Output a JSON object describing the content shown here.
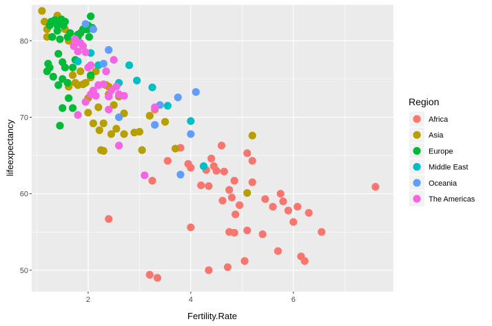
{
  "chart_data": {
    "type": "scatter",
    "xlabel": "Fertility.Rate",
    "ylabel": "lifeexpectancy",
    "xlim": [
      0.9,
      7.95
    ],
    "ylim": [
      47.2,
      84.7
    ],
    "x_ticks": [
      2,
      4,
      6
    ],
    "y_ticks": [
      50,
      60,
      70,
      80
    ],
    "grid": true,
    "legend": {
      "title": "Region",
      "placement": "right"
    },
    "series": [
      {
        "name": "Africa",
        "color": "#F8766D",
        "points": [
          [
            2.4,
            56.7
          ],
          [
            3.25,
            61.7
          ],
          [
            3.3,
            71.0
          ],
          [
            3.2,
            49.4
          ],
          [
            3.35,
            49.0
          ],
          [
            3.55,
            64.3
          ],
          [
            3.8,
            66.0
          ],
          [
            3.95,
            63.9
          ],
          [
            4.0,
            63.4
          ],
          [
            4.0,
            55.6
          ],
          [
            4.2,
            61.1
          ],
          [
            4.3,
            63.1
          ],
          [
            4.35,
            50.0
          ],
          [
            4.35,
            61.0
          ],
          [
            4.4,
            64.6
          ],
          [
            4.45,
            63.6
          ],
          [
            4.5,
            63.0
          ],
          [
            4.6,
            66.3
          ],
          [
            4.62,
            59.1
          ],
          [
            4.65,
            62.9
          ],
          [
            4.72,
            50.4
          ],
          [
            4.75,
            55.0
          ],
          [
            4.75,
            60.5
          ],
          [
            4.8,
            59.5
          ],
          [
            4.85,
            54.9
          ],
          [
            4.85,
            61.7
          ],
          [
            4.87,
            57.3
          ],
          [
            4.95,
            58.5
          ],
          [
            5.05,
            51.2
          ],
          [
            5.1,
            55.2
          ],
          [
            5.1,
            65.3
          ],
          [
            5.2,
            64.3
          ],
          [
            5.2,
            61.5
          ],
          [
            5.4,
            54.7
          ],
          [
            5.45,
            59.3
          ],
          [
            5.6,
            58.3
          ],
          [
            5.7,
            52.5
          ],
          [
            5.75,
            60.0
          ],
          [
            5.8,
            59.0
          ],
          [
            5.9,
            57.8
          ],
          [
            6.0,
            56.3
          ],
          [
            6.08,
            58.3
          ],
          [
            6.15,
            51.8
          ],
          [
            6.22,
            51.2
          ],
          [
            6.3,
            57.5
          ],
          [
            6.55,
            55.0
          ],
          [
            7.6,
            60.9
          ]
        ]
      },
      {
        "name": "Asia",
        "color": "#B79F00",
        "points": [
          [
            1.1,
            83.9
          ],
          [
            1.15,
            82.5
          ],
          [
            1.2,
            81.5
          ],
          [
            1.2,
            80.5
          ],
          [
            1.3,
            80.5
          ],
          [
            1.4,
            83.3
          ],
          [
            1.55,
            81.5
          ],
          [
            1.62,
            80.0
          ],
          [
            1.62,
            74.0
          ],
          [
            1.7,
            75.5
          ],
          [
            1.75,
            74.5
          ],
          [
            1.8,
            74.2
          ],
          [
            1.85,
            76.0
          ],
          [
            1.9,
            74.3
          ],
          [
            1.95,
            74.5
          ],
          [
            2.0,
            72.5
          ],
          [
            2.0,
            70.6
          ],
          [
            2.05,
            75.2
          ],
          [
            2.1,
            69.2
          ],
          [
            2.15,
            76.0
          ],
          [
            2.2,
            71.3
          ],
          [
            2.22,
            68.3
          ],
          [
            2.25,
            65.7
          ],
          [
            2.3,
            69.2
          ],
          [
            2.3,
            65.6
          ],
          [
            2.35,
            74.2
          ],
          [
            2.4,
            73.0
          ],
          [
            2.4,
            74.0
          ],
          [
            2.45,
            67.8
          ],
          [
            2.5,
            71.6
          ],
          [
            2.55,
            68.5
          ],
          [
            2.6,
            72.7
          ],
          [
            2.7,
            67.8
          ],
          [
            2.7,
            70.5
          ],
          [
            2.9,
            68.0
          ],
          [
            3.0,
            68.1
          ],
          [
            3.05,
            65.7
          ],
          [
            3.2,
            70.2
          ],
          [
            3.5,
            69.4
          ],
          [
            3.7,
            65.9
          ],
          [
            5.1,
            60.1
          ],
          [
            5.2,
            67.6
          ]
        ]
      },
      {
        "name": "Europe",
        "color": "#00BA38",
        "points": [
          [
            1.2,
            76.0
          ],
          [
            1.22,
            77.0
          ],
          [
            1.25,
            76.5
          ],
          [
            1.25,
            82.0
          ],
          [
            1.28,
            82.5
          ],
          [
            1.3,
            80.5
          ],
          [
            1.32,
            75.3
          ],
          [
            1.35,
            82.7
          ],
          [
            1.4,
            82.0
          ],
          [
            1.4,
            81.3
          ],
          [
            1.42,
            78.3
          ],
          [
            1.42,
            74.2
          ],
          [
            1.45,
            68.9
          ],
          [
            1.45,
            80.2
          ],
          [
            1.48,
            82.8
          ],
          [
            1.5,
            71.2
          ],
          [
            1.5,
            75.0
          ],
          [
            1.5,
            77.2
          ],
          [
            1.52,
            82.0
          ],
          [
            1.55,
            82.5
          ],
          [
            1.55,
            76.5
          ],
          [
            1.6,
            74.5
          ],
          [
            1.6,
            80.5
          ],
          [
            1.62,
            72.5
          ],
          [
            1.65,
            81.0
          ],
          [
            1.7,
            71.2
          ],
          [
            1.7,
            76.5
          ],
          [
            1.75,
            77.5
          ],
          [
            1.8,
            80.5
          ],
          [
            1.8,
            80.8
          ],
          [
            1.85,
            81.0
          ],
          [
            1.9,
            81.5
          ],
          [
            1.95,
            81.5
          ],
          [
            2.0,
            81.5
          ],
          [
            2.0,
            82.0
          ],
          [
            2.02,
            80.5
          ],
          [
            2.05,
            83.2
          ],
          [
            2.05,
            75.5
          ],
          [
            2.08,
            81.7
          ]
        ]
      },
      {
        "name": "Middle East",
        "color": "#00BFC4",
        "points": [
          [
            1.8,
            77.3
          ],
          [
            2.05,
            78.4
          ],
          [
            2.2,
            76.8
          ],
          [
            2.6,
            74.5
          ],
          [
            2.8,
            76.8
          ],
          [
            2.95,
            74.8
          ],
          [
            3.25,
            73.9
          ],
          [
            3.55,
            71.5
          ],
          [
            4.0,
            69.5
          ],
          [
            4.25,
            63.6
          ]
        ]
      },
      {
        "name": "Oceania",
        "color": "#619CFF",
        "points": [
          [
            1.95,
            82.2
          ],
          [
            2.1,
            81.5
          ],
          [
            2.3,
            77.0
          ],
          [
            2.4,
            78.8
          ],
          [
            2.6,
            70.0
          ],
          [
            3.3,
            69.0
          ],
          [
            3.4,
            71.6
          ],
          [
            3.75,
            72.6
          ],
          [
            3.8,
            62.5
          ],
          [
            4.0,
            67.8
          ],
          [
            4.1,
            73.3
          ]
        ]
      },
      {
        "name": "The Americas",
        "color": "#F564E3",
        "points": [
          [
            1.72,
            79.3
          ],
          [
            1.75,
            80.2
          ],
          [
            1.8,
            78.6
          ],
          [
            1.85,
            79.7
          ],
          [
            1.9,
            79.3
          ],
          [
            1.95,
            78.5
          ],
          [
            2.0,
            76.5
          ],
          [
            2.05,
            76.8
          ],
          [
            2.05,
            73.0
          ],
          [
            2.1,
            73.5
          ],
          [
            2.2,
            74.2
          ],
          [
            2.3,
            74.3
          ],
          [
            2.35,
            76.0
          ],
          [
            2.4,
            72.7
          ],
          [
            2.4,
            71.0
          ],
          [
            2.45,
            73.5
          ],
          [
            2.5,
            77.5
          ],
          [
            2.55,
            74.0
          ],
          [
            2.6,
            73.0
          ],
          [
            2.6,
            66.3
          ],
          [
            2.7,
            72.8
          ],
          [
            1.95,
            72.0
          ],
          [
            2.15,
            72.8
          ],
          [
            1.8,
            70.3
          ],
          [
            3.1,
            62.4
          ],
          [
            3.3,
            71.3
          ]
        ]
      }
    ]
  }
}
